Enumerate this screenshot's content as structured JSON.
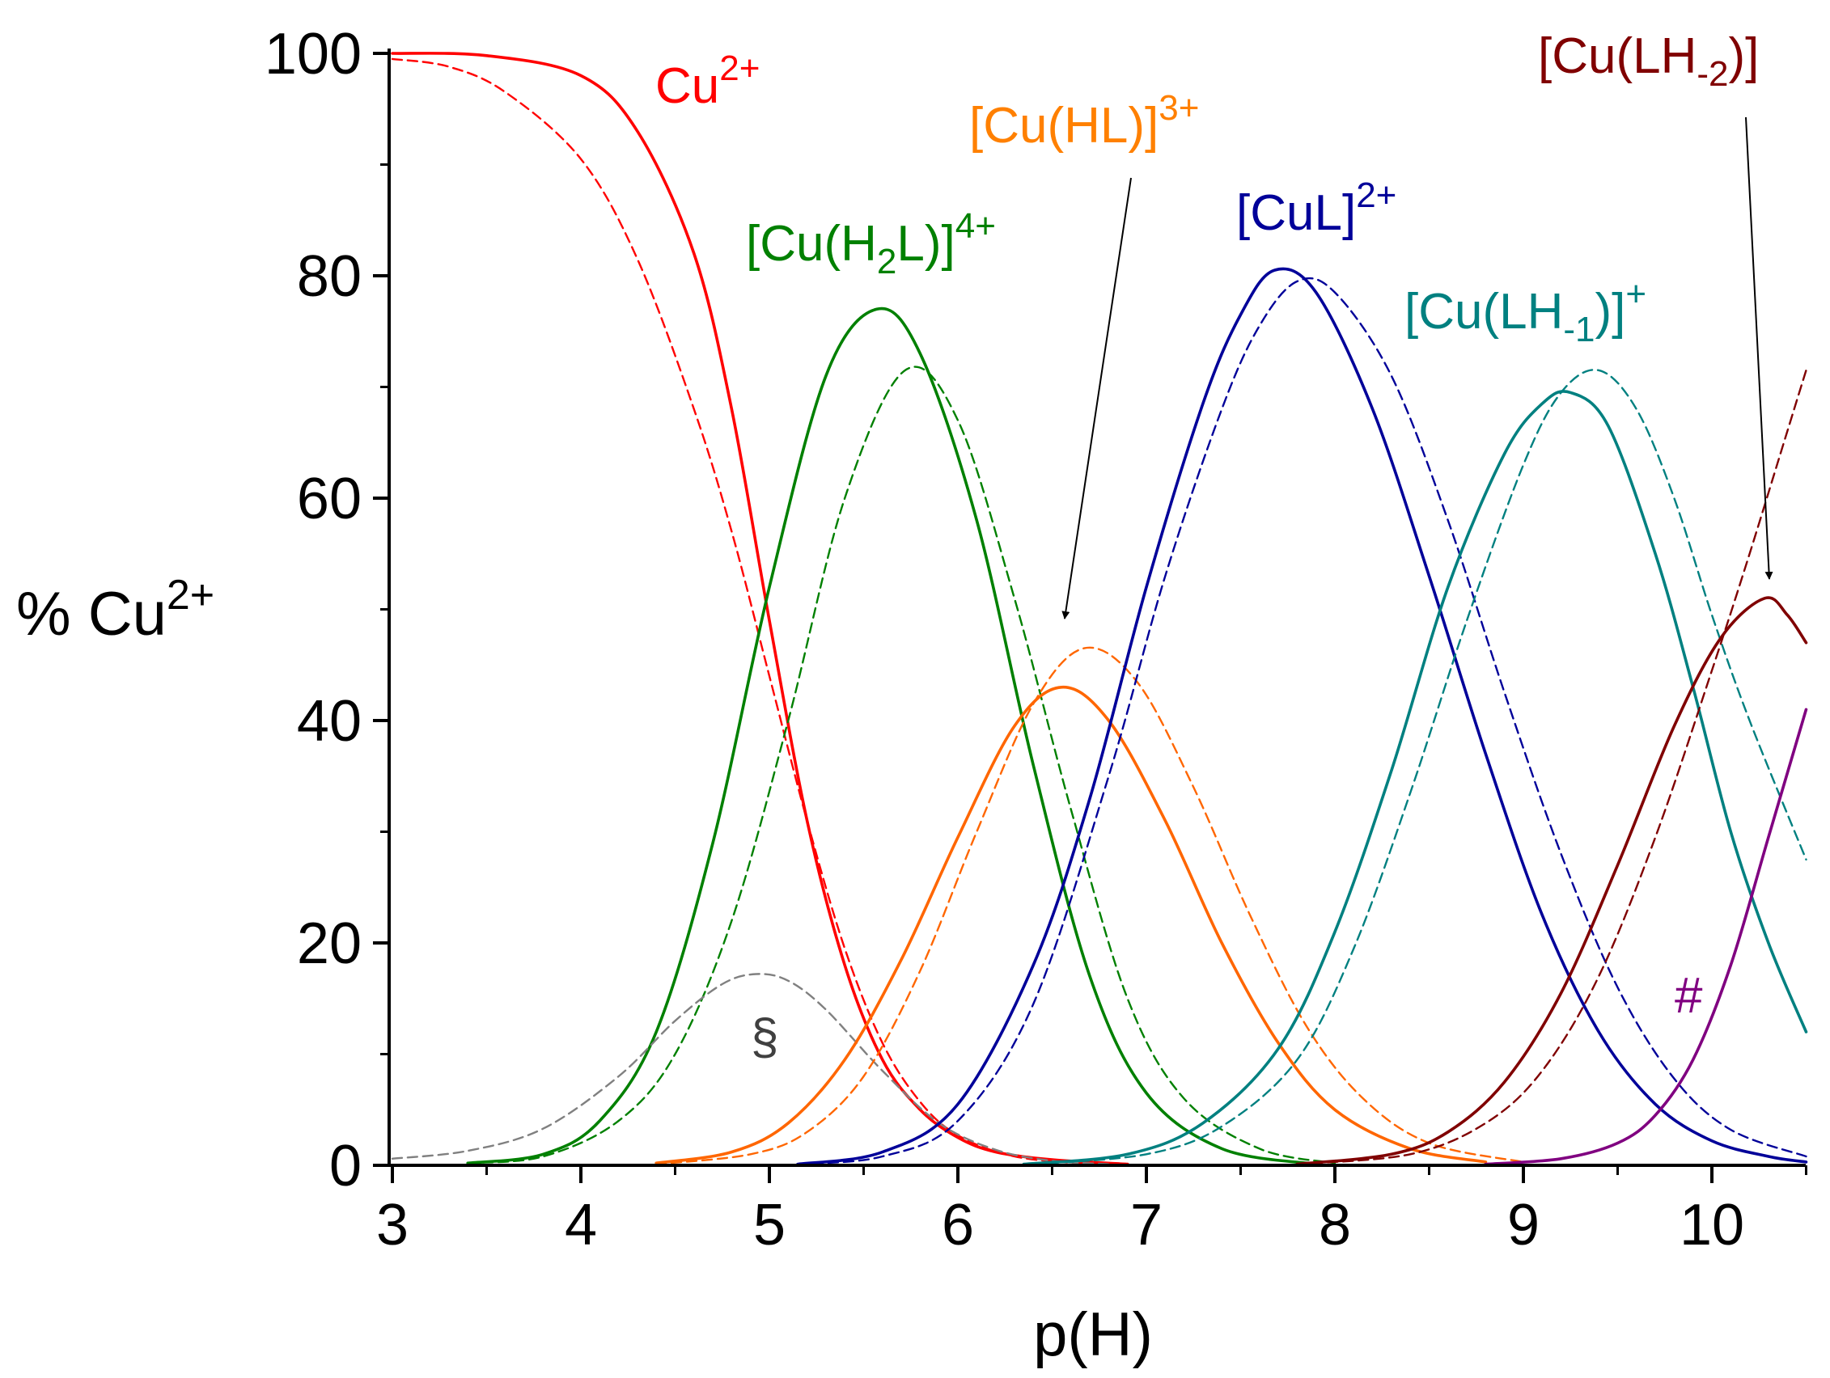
{
  "chart_data": {
    "type": "line",
    "title": "",
    "xlabel": "p(H)",
    "ylabel": {
      "main": "% Cu",
      "sup": "2+"
    },
    "xlim": [
      2.97,
      10.5
    ],
    "ylim": [
      -1,
      100
    ],
    "x_ticks": [
      3,
      4,
      5,
      6,
      7,
      8,
      9,
      10
    ],
    "y_ticks": [
      0,
      20,
      40,
      60,
      80,
      100
    ],
    "grid": false,
    "legend": "none (species labelled inline)",
    "series": [
      {
        "name": "Cu2+ (solid)",
        "color": "#ff0000",
        "dashed": false,
        "x": [
          3,
          3.5,
          4.0,
          4.3,
          4.6,
          4.8,
          5.0,
          5.2,
          5.4,
          5.6,
          5.8,
          6.0,
          6.2,
          6.5,
          6.9
        ],
        "values": [
          100,
          99.8,
          98,
          93,
          82,
          68,
          49,
          31,
          18,
          9.5,
          5,
          2.5,
          1.2,
          0.5,
          0.1
        ]
      },
      {
        "name": "Cu2+ (dashed)",
        "color": "#ff0000",
        "dashed": true,
        "x": [
          3,
          3.3,
          3.6,
          4.0,
          4.3,
          4.6,
          4.8,
          5.0,
          5.2,
          5.4,
          5.6,
          5.8,
          6.0,
          6.3,
          6.7
        ],
        "values": [
          99.5,
          98.8,
          96.5,
          90.5,
          81.5,
          68,
          57,
          44,
          31,
          19.5,
          11,
          5.7,
          2.7,
          0.8,
          0.1
        ]
      },
      {
        "name": "[Cu(H2L)]4+ (solid)",
        "color": "#008000",
        "dashed": false,
        "x": [
          3.4,
          3.8,
          4.1,
          4.4,
          4.7,
          5.0,
          5.3,
          5.57,
          5.8,
          6.1,
          6.4,
          6.7,
          7.0,
          7.4,
          7.9
        ],
        "values": [
          0.2,
          1.0,
          4.0,
          12,
          29,
          52,
          71,
          77,
          73,
          58,
          36,
          17,
          6.5,
          1.5,
          0.1
        ]
      },
      {
        "name": "[Cu(H2L)]4+ (dashed)",
        "color": "#008000",
        "dashed": true,
        "x": [
          3.4,
          3.8,
          4.2,
          4.5,
          4.8,
          5.1,
          5.4,
          5.72,
          6.0,
          6.3,
          6.6,
          6.9,
          7.2,
          7.6,
          8.0
        ],
        "values": [
          0.2,
          0.8,
          4.0,
          10,
          22,
          40,
          60,
          71.5,
          67,
          51,
          32,
          15,
          6,
          1.5,
          0.2
        ]
      },
      {
        "name": "§ (dashed)",
        "color": "#808080",
        "dashed": true,
        "x": [
          3,
          3.4,
          3.8,
          4.2,
          4.5,
          4.75,
          4.93,
          5.1,
          5.3,
          5.6,
          5.9,
          6.2,
          6.5,
          6.8
        ],
        "values": [
          0.6,
          1.3,
          3.3,
          8,
          13,
          16.3,
          17.2,
          16.6,
          14,
          8.5,
          3.8,
          1.4,
          0.4,
          0.1
        ]
      },
      {
        "name": "[Cu(HL)]3+ (solid)",
        "color": "#ff6600",
        "dashed": false,
        "x": [
          4.4,
          4.8,
          5.1,
          5.4,
          5.7,
          6.0,
          6.3,
          6.55,
          6.8,
          7.1,
          7.4,
          7.7,
          8.0,
          8.4,
          8.8
        ],
        "values": [
          0.2,
          1.2,
          3.8,
          9.5,
          18.5,
          29.5,
          39.5,
          43,
          40,
          31,
          20,
          11,
          5,
          1.5,
          0.3
        ]
      },
      {
        "name": "[Cu(HL)]3+ (dashed)",
        "color": "#ff6600",
        "dashed": true,
        "x": [
          4.4,
          4.9,
          5.2,
          5.5,
          5.8,
          6.1,
          6.4,
          6.67,
          6.95,
          7.25,
          7.55,
          7.85,
          8.15,
          8.5,
          9.0
        ],
        "values": [
          0.1,
          1.0,
          3.0,
          8.0,
          17.5,
          30,
          41.5,
          46.5,
          43.5,
          34,
          22.5,
          12.5,
          6,
          2,
          0.3
        ]
      },
      {
        "name": "[CuL]2+ (solid)",
        "color": "#000099",
        "dashed": false,
        "x": [
          5.15,
          5.6,
          6.0,
          6.4,
          6.7,
          7.0,
          7.3,
          7.5,
          7.68,
          7.9,
          8.2,
          8.5,
          8.8,
          9.1,
          9.4,
          9.7,
          10.0,
          10.3,
          10.5
        ],
        "values": [
          0.1,
          1.2,
          5.5,
          18,
          33,
          52,
          68.5,
          76.5,
          80.5,
          78.5,
          68,
          53,
          37,
          22.5,
          12,
          5.5,
          2.2,
          0.8,
          0.3
        ]
      },
      {
        "name": "[CuL]2+ (dashed)",
        "color": "#000099",
        "dashed": true,
        "x": [
          5.15,
          5.6,
          6.0,
          6.4,
          6.8,
          7.1,
          7.4,
          7.6,
          7.8,
          8.0,
          8.3,
          8.6,
          8.9,
          9.2,
          9.5,
          9.8,
          10.1,
          10.5
        ],
        "values": [
          0.1,
          0.8,
          4.0,
          14.5,
          35,
          53,
          68,
          75.5,
          79.5,
          78.5,
          71,
          58,
          42.5,
          28,
          16,
          7.8,
          3.2,
          0.8
        ]
      },
      {
        "name": "[Cu(LH-1)]+ (solid)",
        "color": "#008080",
        "dashed": false,
        "x": [
          6.35,
          6.9,
          7.3,
          7.7,
          8.0,
          8.3,
          8.6,
          8.9,
          9.1,
          9.25,
          9.45,
          9.7,
          9.9,
          10.1,
          10.3,
          10.5
        ],
        "values": [
          0.1,
          1.0,
          3.8,
          10.5,
          21,
          35.5,
          52,
          64,
          68.5,
          69.5,
          66.5,
          55,
          43,
          30,
          20,
          12
        ]
      },
      {
        "name": "[Cu(LH-1)]+ (dashed)",
        "color": "#008080",
        "dashed": true,
        "x": [
          6.4,
          7.0,
          7.4,
          7.8,
          8.1,
          8.4,
          8.7,
          9.0,
          9.2,
          9.4,
          9.6,
          9.8,
          10.0,
          10.2,
          10.5
        ],
        "values": [
          0.1,
          1.0,
          3.5,
          9.5,
          19.5,
          33.5,
          49,
          63,
          69.5,
          71.5,
          68,
          60,
          49.5,
          40,
          27.5
        ]
      },
      {
        "name": "[Cu(LH-2)] (solid)",
        "color": "#800000",
        "dashed": false,
        "x": [
          7.8,
          8.3,
          8.6,
          8.9,
          9.2,
          9.5,
          9.8,
          10.05,
          10.28,
          10.4,
          10.5
        ],
        "values": [
          0.1,
          1.0,
          3.0,
          7.5,
          15.5,
          27,
          39.5,
          47.5,
          51,
          49.5,
          47
        ]
      },
      {
        "name": "[Cu(LH-2)] (dashed)",
        "color": "#800000",
        "dashed": true,
        "x": [
          7.8,
          8.4,
          8.8,
          9.1,
          9.4,
          9.7,
          10.0,
          10.2,
          10.4,
          10.5
        ],
        "values": [
          0.1,
          1.0,
          3.8,
          8.5,
          17,
          29.5,
          44.5,
          55,
          66,
          71.5
        ]
      },
      {
        "name": "# (solid)",
        "color": "#800080",
        "dashed": false,
        "x": [
          8.8,
          9.2,
          9.5,
          9.7,
          9.9,
          10.1,
          10.3,
          10.5
        ],
        "values": [
          0.1,
          0.6,
          2.0,
          4.5,
          9.5,
          18,
          29.5,
          41
        ]
      }
    ],
    "annotations": [
      {
        "text": "Cu",
        "sup": "2+",
        "color": "#ff0000"
      },
      {
        "text_parts": [
          "[Cu(H",
          "2",
          "L)]"
        ],
        "sup": "4+",
        "color": "#008000"
      },
      {
        "text": "[Cu(HL)]",
        "sup": "3+",
        "color": "#ff8000"
      },
      {
        "text": "[CuL]",
        "sup": "2+",
        "color": "#000099"
      },
      {
        "text_parts": [
          "[Cu(LH",
          "-1",
          ")]"
        ],
        "sup": "+",
        "color": "#008080"
      },
      {
        "text_parts": [
          "[Cu(LH",
          "-2",
          ")]"
        ],
        "sup": "",
        "color": "#800000"
      },
      {
        "text": "§",
        "color": "#404040"
      },
      {
        "text": "#",
        "color": "#800080"
      }
    ]
  }
}
